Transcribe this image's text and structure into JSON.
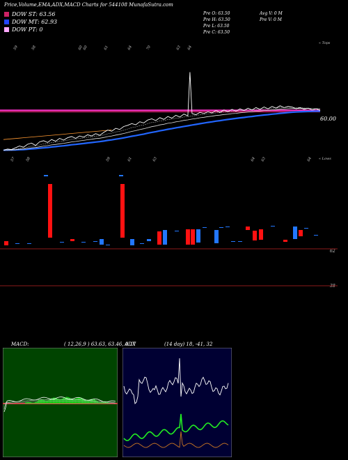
{
  "header": {
    "title": "Price,Volume,EMA,ADX,MACD Charts for 544108 MunafaSutra.com"
  },
  "legend": [
    {
      "label": "DOW ST: 63.56",
      "color": "#cc2266"
    },
    {
      "label": "DOW MT: 62.93",
      "color": "#2244ff"
    },
    {
      "label": "DOW PT: 0",
      "color": "#ffaaff"
    }
  ],
  "ohlc": {
    "col1": [
      "Pre O: 63.50",
      "Pre H: 63.50",
      "Pre L: 63.50",
      "Pre C: 63.50"
    ],
    "col2": [
      "Avg V: 0 M",
      "Pre V: 0 M"
    ]
  },
  "chart_data": [
    {
      "type": "line",
      "name": "price",
      "top_label": "« Tops",
      "bottom_label": "« Lows",
      "price_label": "60.00",
      "top_tick_labels": [
        "59",
        "58",
        "60",
        "60",
        "61",
        "64",
        "70",
        "63",
        "64"
      ],
      "bottom_tick_labels": [
        "57",
        "58",
        "59",
        "61",
        "63",
        "64",
        "63",
        "64"
      ],
      "close": [
        56.8,
        57.0,
        56.9,
        57.2,
        57.5,
        57.3,
        57.8,
        58.0,
        57.6,
        58.2,
        58.4,
        58.1,
        58.6,
        58.3,
        58.8,
        58.5,
        58.9,
        59.1,
        58.8,
        59.2,
        59.0,
        59.4,
        59.2,
        59.6,
        59.3,
        59.8,
        60.2,
        60.0,
        60.5,
        60.3,
        60.8,
        61.0,
        61.3,
        61.1,
        61.6,
        61.4,
        61.9,
        62.1,
        61.8,
        62.3,
        62.0,
        62.5,
        62.2,
        62.7,
        62.4,
        62.9,
        62.6,
        63.0,
        62.8,
        63.2,
        63.0,
        63.3,
        63.1,
        63.5,
        63.2,
        63.6,
        63.3,
        63.7,
        63.4,
        63.8,
        63.5,
        63.9,
        63.6,
        64.0,
        63.7,
        64.1,
        63.8,
        64.2,
        63.9,
        64.3,
        64.0,
        64.2,
        64.1,
        63.8,
        64.0,
        63.7,
        63.9,
        63.6,
        63.8,
        63.5
      ],
      "spike_high": 70.0
    },
    {
      "type": "bar",
      "name": "volume",
      "labels": [
        "62",
        "38"
      ]
    },
    {
      "type": "line",
      "name": "macd",
      "title": "MACD:",
      "params": "( 12,26,9 ) 63.63, 63.46, 0.17"
    },
    {
      "type": "line",
      "name": "adx",
      "title": "ADX",
      "params": "(14 day) 18, -41, 32"
    }
  ]
}
